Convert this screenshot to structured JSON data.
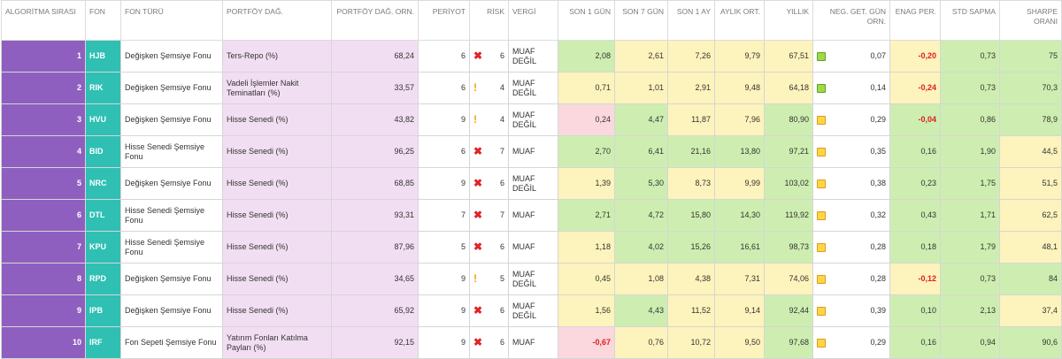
{
  "headers": {
    "rank": "ALGORİTMA SIRASI",
    "fon": "FON",
    "fon_turu": "FON TÜRÜ",
    "portfoy_dag": "PORTFÖY DAĞ.",
    "portfoy_orn": "PORTFÖY DAĞ. ORN.",
    "periyot": "PERİYOT",
    "risk": "RİSK",
    "vergi": "VERGİ",
    "son1": "SON 1 GÜN",
    "son7": "SON 7 GÜN",
    "son1ay": "SON 1 AY",
    "aylik": "AYLIK ORT.",
    "yillik": "YILLIK",
    "neg": "NEG. GET. GÜN ORN.",
    "enag": "ENAG PER.",
    "std": "STD SAPMA",
    "sharpe": "SHARPE ORANI"
  },
  "colors": {
    "rank_bg": "#8f5fbf",
    "code_bg": "#2fc0b3",
    "portfolio_bg": "#f2def2",
    "good": "#cdeeb0",
    "mid": "#fdf3bc",
    "bad": "#fbd7de",
    "negative_text": "#e11d1d"
  },
  "rows": [
    {
      "rank": "1",
      "code": "HJB",
      "type": "Değişken Şemsiye Fonu",
      "portfolio": "Ters-Repo (%)",
      "portfolio_orn": "68,24",
      "periyot": "6",
      "risk_icon": "x-icon",
      "risk": "6",
      "vergi": "MUAF DEĞİL",
      "son1": "2,08",
      "son1_c": "green",
      "son7": "2,61",
      "son7_c": "yellow",
      "son1ay": "7,26",
      "son1ay_c": "yellow",
      "aylik": "9,79",
      "aylik_c": "yellow",
      "yillik": "67,51",
      "yillik_c": "yellow",
      "neg_ind": "green",
      "neg": "0,07",
      "enag": "-0,20",
      "enag_c": "yellow",
      "enag_neg": true,
      "std": "0,73",
      "std_c": "green",
      "sharpe": "75",
      "sharpe_c": "green"
    },
    {
      "rank": "2",
      "code": "RIK",
      "type": "Değişken Şemsiye Fonu",
      "portfolio": "Vadeli İşlemler Nakit Teminatları (%)",
      "portfolio_orn": "33,57",
      "periyot": "6",
      "risk_icon": "exclamation-icon",
      "risk": "4",
      "vergi": "MUAF DEĞİL",
      "son1": "0,71",
      "son1_c": "yellow",
      "son7": "1,01",
      "son7_c": "yellow",
      "son1ay": "2,91",
      "son1ay_c": "yellow",
      "aylik": "9,48",
      "aylik_c": "yellow",
      "yillik": "64,18",
      "yillik_c": "yellow",
      "neg_ind": "green",
      "neg": "0,14",
      "enag": "-0,24",
      "enag_c": "yellow",
      "enag_neg": true,
      "std": "0,73",
      "std_c": "green",
      "sharpe": "70,3",
      "sharpe_c": "green"
    },
    {
      "rank": "3",
      "code": "HVU",
      "type": "Değişken Şemsiye Fonu",
      "portfolio": "Hisse Senedi (%)",
      "portfolio_orn": "43,82",
      "periyot": "9",
      "risk_icon": "exclamation-icon",
      "risk": "4",
      "vergi": "MUAF DEĞİL",
      "son1": "0,24",
      "son1_c": "red",
      "son7": "4,47",
      "son7_c": "green",
      "son1ay": "11,87",
      "son1ay_c": "yellow",
      "aylik": "7,96",
      "aylik_c": "yellow",
      "yillik": "80,90",
      "yillik_c": "green",
      "neg_ind": "orange",
      "neg": "0,29",
      "enag": "-0,04",
      "enag_c": "green",
      "enag_neg": true,
      "std": "0,86",
      "std_c": "green",
      "sharpe": "78,9",
      "sharpe_c": "green"
    },
    {
      "rank": "4",
      "code": "BID",
      "type": "Hisse Senedi Şemsiye Fonu",
      "portfolio": "Hisse Senedi (%)",
      "portfolio_orn": "96,25",
      "periyot": "6",
      "risk_icon": "x-icon",
      "risk": "7",
      "vergi": "MUAF",
      "son1": "2,70",
      "son1_c": "green",
      "son7": "6,41",
      "son7_c": "green",
      "son1ay": "21,16",
      "son1ay_c": "green",
      "aylik": "13,80",
      "aylik_c": "green",
      "yillik": "97,21",
      "yillik_c": "green",
      "neg_ind": "orange",
      "neg": "0,35",
      "enag": "0,16",
      "enag_c": "green",
      "enag_neg": false,
      "std": "1,90",
      "std_c": "green",
      "sharpe": "44,5",
      "sharpe_c": "yellow"
    },
    {
      "rank": "5",
      "code": "NRC",
      "type": "Değişken Şemsiye Fonu",
      "portfolio": "Hisse Senedi (%)",
      "portfolio_orn": "68,85",
      "periyot": "9",
      "risk_icon": "x-icon",
      "risk": "6",
      "vergi": "MUAF DEĞİL",
      "son1": "1,39",
      "son1_c": "yellow",
      "son7": "5,30",
      "son7_c": "green",
      "son1ay": "8,73",
      "son1ay_c": "yellow",
      "aylik": "9,99",
      "aylik_c": "yellow",
      "yillik": "103,02",
      "yillik_c": "green",
      "neg_ind": "orange",
      "neg": "0,38",
      "enag": "0,23",
      "enag_c": "green",
      "enag_neg": false,
      "std": "1,75",
      "std_c": "green",
      "sharpe": "51,5",
      "sharpe_c": "yellow"
    },
    {
      "rank": "6",
      "code": "DTL",
      "type": "Hisse Senedi Şemsiye Fonu",
      "portfolio": "Hisse Senedi (%)",
      "portfolio_orn": "93,31",
      "periyot": "7",
      "risk_icon": "x-icon",
      "risk": "7",
      "vergi": "MUAF",
      "son1": "2,71",
      "son1_c": "green",
      "son7": "4,72",
      "son7_c": "green",
      "son1ay": "15,80",
      "son1ay_c": "green",
      "aylik": "14,30",
      "aylik_c": "green",
      "yillik": "119,92",
      "yillik_c": "green",
      "neg_ind": "orange",
      "neg": "0,32",
      "enag": "0,43",
      "enag_c": "green",
      "enag_neg": false,
      "std": "1,71",
      "std_c": "green",
      "sharpe": "62,5",
      "sharpe_c": "yellow"
    },
    {
      "rank": "7",
      "code": "KPU",
      "type": "Hisse Senedi Şemsiye Fonu",
      "portfolio": "Hisse Senedi (%)",
      "portfolio_orn": "87,96",
      "periyot": "5",
      "risk_icon": "x-icon",
      "risk": "6",
      "vergi": "MUAF",
      "son1": "1,18",
      "son1_c": "yellow",
      "son7": "4,02",
      "son7_c": "green",
      "son1ay": "15,26",
      "son1ay_c": "green",
      "aylik": "16,61",
      "aylik_c": "green",
      "yillik": "98,73",
      "yillik_c": "green",
      "neg_ind": "orange",
      "neg": "0,28",
      "enag": "0,18",
      "enag_c": "green",
      "enag_neg": false,
      "std": "1,79",
      "std_c": "green",
      "sharpe": "48,1",
      "sharpe_c": "yellow"
    },
    {
      "rank": "8",
      "code": "RPD",
      "type": "Değişken Şemsiye Fonu",
      "portfolio": "Hisse Senedi (%)",
      "portfolio_orn": "34,65",
      "periyot": "9",
      "risk_icon": "exclamation-icon",
      "risk": "5",
      "vergi": "MUAF DEĞİL",
      "son1": "0,45",
      "son1_c": "yellow",
      "son7": "1,08",
      "son7_c": "yellow",
      "son1ay": "4,38",
      "son1ay_c": "yellow",
      "aylik": "7,31",
      "aylik_c": "yellow",
      "yillik": "74,06",
      "yillik_c": "yellow",
      "neg_ind": "orange",
      "neg": "0,28",
      "enag": "-0,12",
      "enag_c": "yellow",
      "enag_neg": true,
      "std": "0,73",
      "std_c": "green",
      "sharpe": "84",
      "sharpe_c": "green"
    },
    {
      "rank": "9",
      "code": "IPB",
      "type": "Değişken Şemsiye Fonu",
      "portfolio": "Hisse Senedi (%)",
      "portfolio_orn": "65,92",
      "periyot": "9",
      "risk_icon": "x-icon",
      "risk": "6",
      "vergi": "MUAF DEĞİL",
      "son1": "1,56",
      "son1_c": "yellow",
      "son7": "4,43",
      "son7_c": "green",
      "son1ay": "11,52",
      "son1ay_c": "yellow",
      "aylik": "9,14",
      "aylik_c": "yellow",
      "yillik": "92,44",
      "yillik_c": "green",
      "neg_ind": "orange",
      "neg": "0,39",
      "enag": "0,10",
      "enag_c": "green",
      "enag_neg": false,
      "std": "2,13",
      "std_c": "green",
      "sharpe": "37,4",
      "sharpe_c": "yellow"
    },
    {
      "rank": "10",
      "code": "IRF",
      "type": "Fon Sepeti Şemsiye Fonu",
      "portfolio": "Yatırım Fonları Katılma Payları (%)",
      "portfolio_orn": "92,15",
      "periyot": "9",
      "risk_icon": "x-icon",
      "risk": "6",
      "vergi": "MUAF",
      "son1": "-0,67",
      "son1_c": "red",
      "son1_neg": true,
      "son7": "0,76",
      "son7_c": "yellow",
      "son1ay": "10,72",
      "son1ay_c": "yellow",
      "aylik": "9,50",
      "aylik_c": "yellow",
      "yillik": "97,68",
      "yillik_c": "green",
      "neg_ind": "orange",
      "neg": "0,29",
      "enag": "0,16",
      "enag_c": "green",
      "enag_neg": false,
      "std": "0,94",
      "std_c": "green",
      "sharpe": "90,6",
      "sharpe_c": "green"
    }
  ]
}
